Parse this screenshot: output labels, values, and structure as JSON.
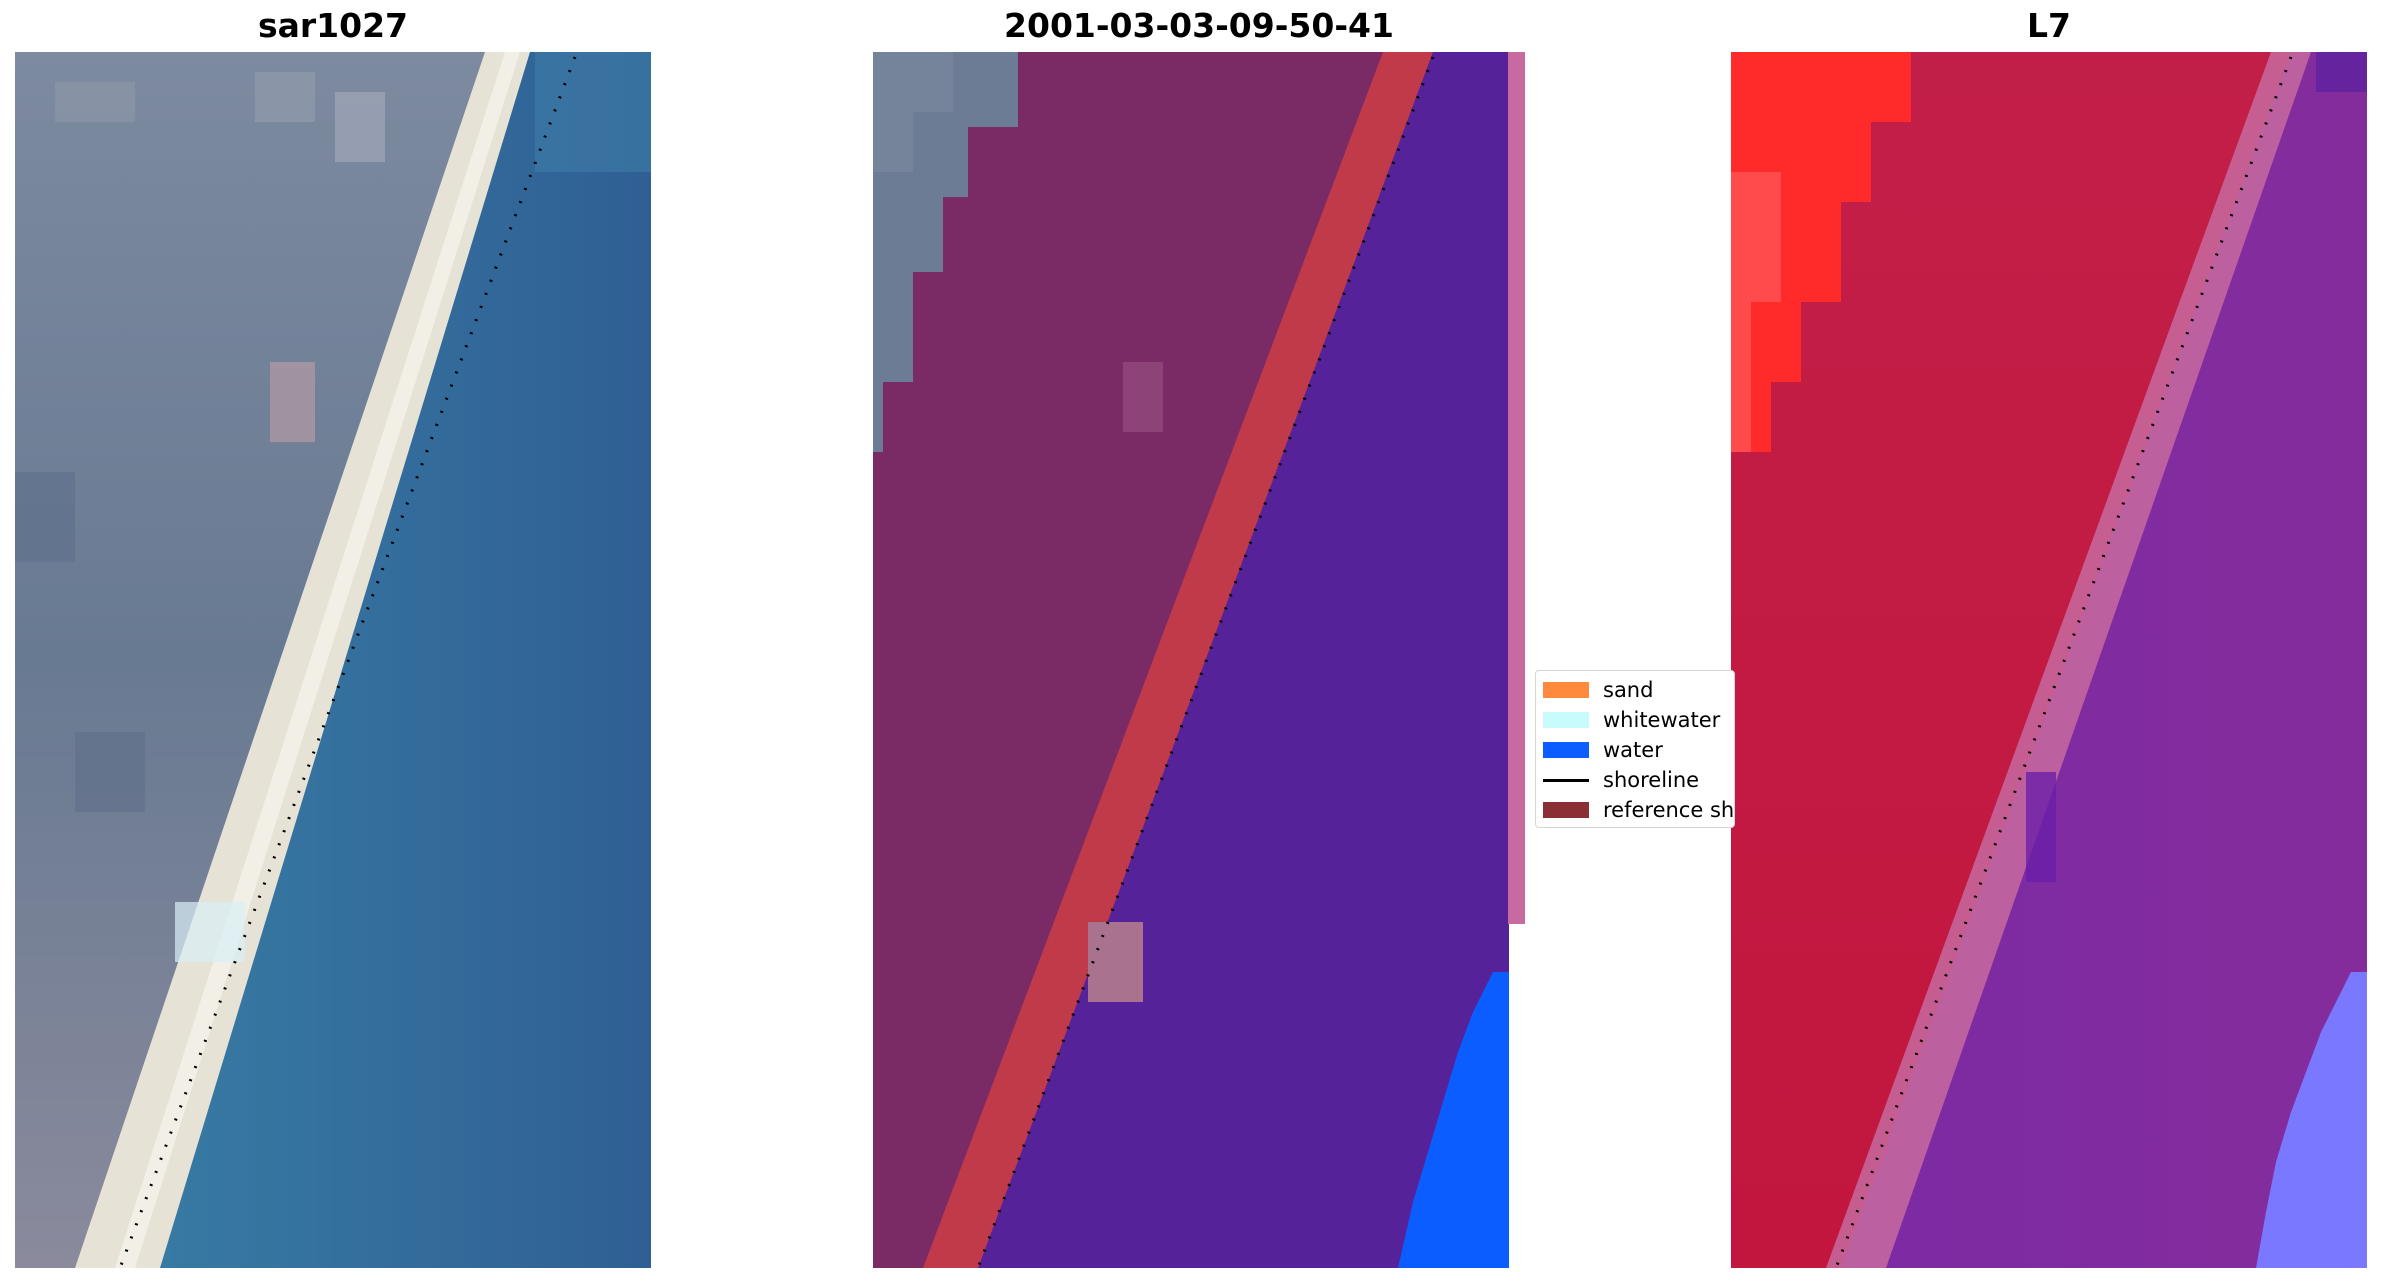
{
  "panels": [
    {
      "title": "sar1027",
      "colors": {
        "land": "#6f7f94",
        "land_dark": "#5a6b82",
        "sand": "#eae6da",
        "sea": "#3474a0",
        "sea_dark": "#2f5f94"
      }
    },
    {
      "title": "2001-03-03-09-50-41",
      "colors": {
        "land": "#7a2a64",
        "sand_overlay": "#c03a4a",
        "water_class": "#55229a",
        "water_bright": "#0b5dff",
        "raw_land": "#6f7f94",
        "strip": "#c76aa0"
      }
    },
    {
      "title": "L7",
      "colors": {
        "land": "#c41c46",
        "bright": "#ff2a2a",
        "water": "#7a2aa0",
        "water_blue": "#7a78ff"
      }
    }
  ],
  "legend": {
    "items": [
      {
        "label": "sand",
        "color": "#ff8a3d",
        "kind": "patch"
      },
      {
        "label": "whitewater",
        "color": "#c8fbfb",
        "kind": "patch"
      },
      {
        "label": "water",
        "color": "#0b5dff",
        "kind": "patch"
      },
      {
        "label": "shoreline",
        "color": "#000000",
        "kind": "line"
      },
      {
        "label": "reference sh",
        "color": "#8b2f34",
        "kind": "patch"
      }
    ]
  }
}
